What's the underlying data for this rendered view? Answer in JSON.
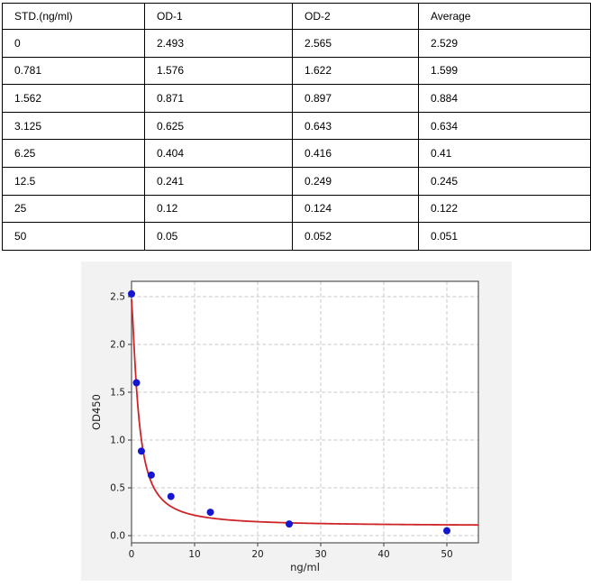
{
  "table": {
    "columns": [
      "STD.(ng/ml)",
      "OD-1",
      "OD-2",
      "Average"
    ],
    "rows": [
      {
        "std": "0",
        "od1": "2.493",
        "od2": "2.565",
        "avg": "2.529"
      },
      {
        "std": "0.781",
        "od1": "1.576",
        "od2": "1.622",
        "avg": "1.599"
      },
      {
        "std": "1.562",
        "od1": "0.871",
        "od2": "0.897",
        "avg": "0.884"
      },
      {
        "std": "3.125",
        "od1": "0.625",
        "od2": "0.643",
        "avg": "0.634"
      },
      {
        "std": "6.25",
        "od1": "0.404",
        "od2": "0.416",
        "avg": "0.41"
      },
      {
        "std": "12.5",
        "od1": "0.241",
        "od2": "0.249",
        "avg": "0.245"
      },
      {
        "std": "25",
        "od1": "0.12",
        "od2": "0.124",
        "avg": "0.122"
      },
      {
        "std": "50",
        "od1": "0.05",
        "od2": "0.052",
        "avg": "0.051"
      }
    ]
  },
  "chart_data": {
    "type": "scatter",
    "title": "",
    "xlabel": "ng/ml",
    "ylabel": "OD450",
    "x": [
      0,
      0.781,
      1.562,
      3.125,
      6.25,
      12.5,
      25,
      50
    ],
    "y": [
      2.529,
      1.599,
      0.884,
      0.634,
      0.41,
      0.245,
      0.122,
      0.051
    ],
    "xlim": [
      0,
      55
    ],
    "ylim": [
      -0.075,
      2.66
    ],
    "xticks": [
      0,
      10,
      20,
      30,
      40,
      50
    ],
    "xtick_labels": [
      "0",
      "10",
      "20",
      "30",
      "40",
      "50"
    ],
    "yticks": [
      0.0,
      0.5,
      1.0,
      1.5,
      2.0,
      2.5
    ],
    "ytick_labels": [
      "0.0",
      "0.5",
      "1.0",
      "1.5",
      "2.0",
      "2.5"
    ],
    "grid": true,
    "fit_curve": {
      "model": "4PL",
      "a": 2.47,
      "b": 1.35,
      "c": 1.09,
      "d": 0.1
    },
    "colors": {
      "point": "#1616cf",
      "curve": "#cf2428",
      "figure_bg": "#f2f2f2",
      "plot_bg": "#ffffff",
      "grid": "#c8c8c8",
      "spine": "#555555",
      "tick_text": "#1a1a1a"
    }
  }
}
